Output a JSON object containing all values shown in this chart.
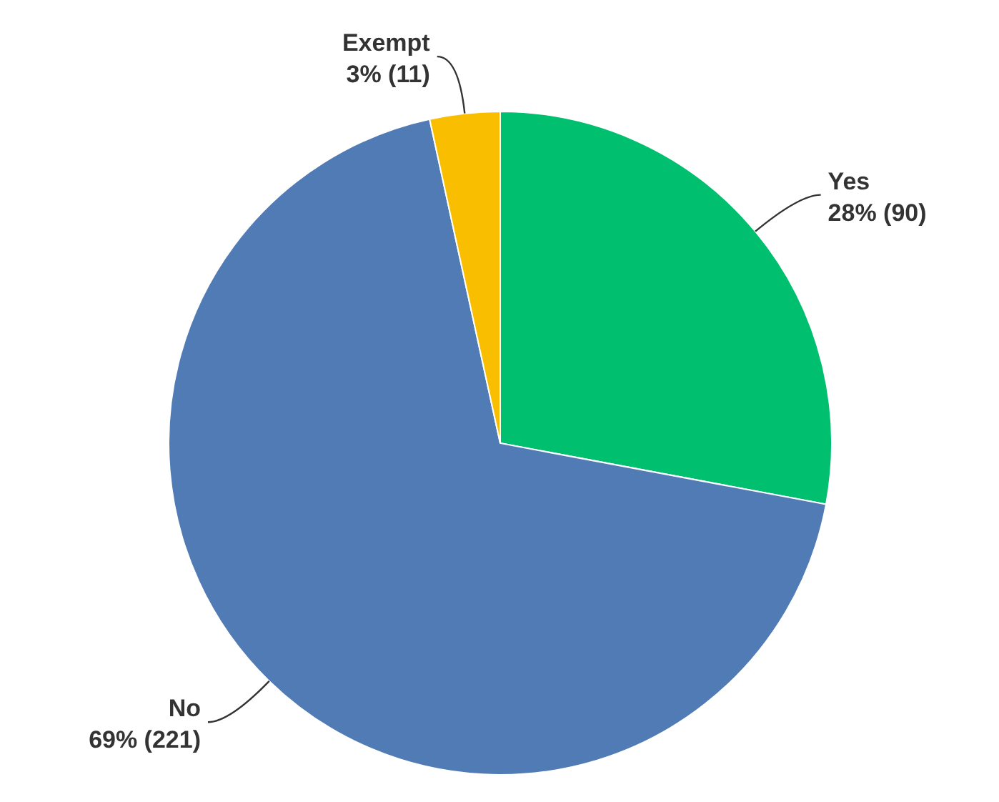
{
  "chart_data": {
    "type": "pie",
    "categories": [
      "Yes",
      "No",
      "Exempt"
    ],
    "values": [
      90,
      221,
      11
    ],
    "colors": [
      "#00bf6f",
      "#507bb5",
      "#f9be00"
    ],
    "value_labels": [
      "28% (90)",
      "69% (221)",
      "3% (11)"
    ]
  }
}
